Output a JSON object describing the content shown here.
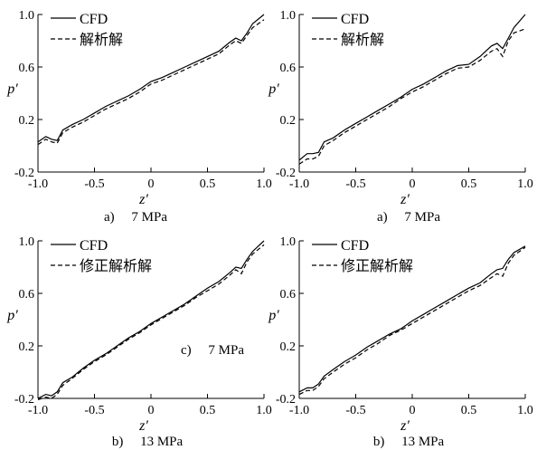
{
  "chart_data": [
    {
      "type": "line",
      "caption": "a)　 7 MPa",
      "xlabel": "z′",
      "ylabel": "p′",
      "xlim": [
        -1.0,
        1.0
      ],
      "ylim": [
        -0.2,
        1.0
      ],
      "xticks": [
        "-1.0",
        "-0.5",
        "0",
        "0.5",
        "1.0"
      ],
      "yticks": [
        "-0.2",
        "0.2",
        "0.6",
        "1.0"
      ],
      "inline_text": [],
      "grid": false,
      "legend_position": "top-left",
      "series": [
        {
          "name": "CFD",
          "style": "solid",
          "x": [
            -1.0,
            -0.93,
            -0.88,
            -0.83,
            -0.78,
            -0.7,
            -0.6,
            -0.5,
            -0.4,
            -0.3,
            -0.2,
            -0.1,
            0.0,
            0.1,
            0.2,
            0.3,
            0.4,
            0.5,
            0.6,
            0.7,
            0.75,
            0.8,
            0.85,
            0.9,
            1.0
          ],
          "y": [
            0.03,
            0.07,
            0.05,
            0.04,
            0.12,
            0.16,
            0.2,
            0.25,
            0.3,
            0.34,
            0.38,
            0.43,
            0.49,
            0.52,
            0.56,
            0.6,
            0.64,
            0.68,
            0.72,
            0.79,
            0.82,
            0.8,
            0.86,
            0.93,
            1.0
          ]
        },
        {
          "name": "解析解",
          "style": "dashed",
          "x": [
            -1.0,
            -0.93,
            -0.88,
            -0.83,
            -0.78,
            -0.7,
            -0.6,
            -0.5,
            -0.4,
            -0.3,
            -0.2,
            -0.1,
            0.0,
            0.1,
            0.2,
            0.3,
            0.4,
            0.5,
            0.6,
            0.7,
            0.75,
            0.8,
            0.85,
            0.9,
            1.0
          ],
          "y": [
            0.01,
            0.05,
            0.03,
            0.02,
            0.1,
            0.14,
            0.18,
            0.23,
            0.28,
            0.32,
            0.36,
            0.41,
            0.47,
            0.5,
            0.54,
            0.58,
            0.62,
            0.66,
            0.7,
            0.77,
            0.8,
            0.78,
            0.84,
            0.9,
            0.96
          ]
        }
      ]
    },
    {
      "type": "line",
      "caption": "a)　 7 MPa",
      "xlabel": "z′",
      "ylabel": "p′",
      "xlim": [
        -1.0,
        1.0
      ],
      "ylim": [
        -0.2,
        1.0
      ],
      "xticks": [
        "-1.0",
        "-0.5",
        "0",
        "0.5",
        "1.0"
      ],
      "yticks": [
        "-0.2",
        "0.2",
        "0.6",
        "1.0"
      ],
      "inline_text": [],
      "grid": false,
      "legend_position": "top-left",
      "series": [
        {
          "name": "CFD",
          "style": "solid",
          "x": [
            -1.0,
            -0.93,
            -0.88,
            -0.83,
            -0.78,
            -0.7,
            -0.6,
            -0.5,
            -0.4,
            -0.3,
            -0.2,
            -0.1,
            0.0,
            0.1,
            0.2,
            0.3,
            0.4,
            0.5,
            0.6,
            0.7,
            0.75,
            0.8,
            0.85,
            0.9,
            1.0
          ],
          "y": [
            -0.11,
            -0.06,
            -0.06,
            -0.05,
            0.03,
            0.06,
            0.12,
            0.17,
            0.22,
            0.27,
            0.32,
            0.37,
            0.43,
            0.47,
            0.52,
            0.57,
            0.61,
            0.62,
            0.68,
            0.76,
            0.78,
            0.74,
            0.82,
            0.9,
            1.0
          ]
        },
        {
          "name": "解析解",
          "style": "dashed",
          "x": [
            -1.0,
            -0.93,
            -0.88,
            -0.83,
            -0.78,
            -0.7,
            -0.6,
            -0.5,
            -0.4,
            -0.3,
            -0.2,
            -0.1,
            0.0,
            0.1,
            0.2,
            0.3,
            0.4,
            0.5,
            0.6,
            0.7,
            0.75,
            0.8,
            0.85,
            0.9,
            1.0
          ],
          "y": [
            -0.14,
            -0.1,
            -0.1,
            -0.08,
            0.0,
            0.04,
            0.1,
            0.15,
            0.2,
            0.25,
            0.3,
            0.36,
            0.41,
            0.45,
            0.5,
            0.55,
            0.59,
            0.6,
            0.65,
            0.72,
            0.74,
            0.68,
            0.8,
            0.86,
            0.89
          ]
        }
      ]
    },
    {
      "type": "line",
      "caption": "b)　 13 MPa",
      "xlabel": "z′",
      "ylabel": "p′",
      "xlim": [
        -1.0,
        1.0
      ],
      "ylim": [
        -0.2,
        1.0
      ],
      "xticks": [
        "-1.0",
        "-0.5",
        "0",
        "0.5",
        "1.0"
      ],
      "yticks": [
        "-0.2",
        "0.2",
        "0.6",
        "1.0"
      ],
      "inline_text": [
        "c)　 7 MPa"
      ],
      "grid": false,
      "legend_position": "top-left",
      "series": [
        {
          "name": "CFD",
          "style": "solid",
          "x": [
            -1.0,
            -0.93,
            -0.88,
            -0.83,
            -0.78,
            -0.7,
            -0.6,
            -0.5,
            -0.4,
            -0.3,
            -0.2,
            -0.1,
            0.0,
            0.1,
            0.2,
            0.3,
            0.4,
            0.5,
            0.6,
            0.7,
            0.75,
            0.8,
            0.85,
            0.9,
            1.0
          ],
          "y": [
            -0.2,
            -0.17,
            -0.18,
            -0.15,
            -0.08,
            -0.04,
            0.03,
            0.09,
            0.14,
            0.2,
            0.26,
            0.31,
            0.37,
            0.42,
            0.47,
            0.52,
            0.58,
            0.64,
            0.69,
            0.76,
            0.8,
            0.79,
            0.86,
            0.92,
            1.0
          ]
        },
        {
          "name": "修正解析解",
          "style": "dashed",
          "x": [
            -1.0,
            -0.93,
            -0.88,
            -0.83,
            -0.78,
            -0.7,
            -0.6,
            -0.5,
            -0.4,
            -0.3,
            -0.2,
            -0.1,
            0.0,
            0.1,
            0.2,
            0.3,
            0.4,
            0.5,
            0.6,
            0.7,
            0.75,
            0.8,
            0.85,
            0.9,
            1.0
          ],
          "y": [
            -0.21,
            -0.19,
            -0.2,
            -0.17,
            -0.1,
            -0.05,
            0.02,
            0.08,
            0.13,
            0.19,
            0.25,
            0.3,
            0.36,
            0.41,
            0.46,
            0.51,
            0.57,
            0.62,
            0.67,
            0.74,
            0.78,
            0.75,
            0.84,
            0.9,
            0.97
          ]
        }
      ]
    },
    {
      "type": "line",
      "caption": "b)　 13 MPa",
      "xlabel": "z′",
      "ylabel": "p′",
      "xlim": [
        -1.0,
        1.0
      ],
      "ylim": [
        -0.2,
        1.0
      ],
      "xticks": [
        "-1.0",
        "-0.5",
        "0",
        "0.5",
        "1.0"
      ],
      "yticks": [
        "-0.2",
        "0.2",
        "0.6",
        "1.0"
      ],
      "inline_text": [],
      "grid": false,
      "legend_position": "top-left",
      "series": [
        {
          "name": "CFD",
          "style": "solid",
          "x": [
            -1.0,
            -0.93,
            -0.88,
            -0.83,
            -0.78,
            -0.7,
            -0.6,
            -0.5,
            -0.4,
            -0.3,
            -0.2,
            -0.1,
            0.0,
            0.1,
            0.2,
            0.3,
            0.4,
            0.5,
            0.6,
            0.7,
            0.75,
            0.8,
            0.85,
            0.9,
            1.0
          ],
          "y": [
            -0.15,
            -0.12,
            -0.12,
            -0.09,
            -0.03,
            0.02,
            0.08,
            0.13,
            0.19,
            0.24,
            0.29,
            0.33,
            0.39,
            0.44,
            0.49,
            0.54,
            0.59,
            0.64,
            0.68,
            0.75,
            0.78,
            0.79,
            0.86,
            0.91,
            0.96
          ]
        },
        {
          "name": "修正解析解",
          "style": "dashed",
          "x": [
            -1.0,
            -0.93,
            -0.88,
            -0.83,
            -0.78,
            -0.7,
            -0.6,
            -0.5,
            -0.4,
            -0.3,
            -0.2,
            -0.1,
            0.0,
            0.1,
            0.2,
            0.3,
            0.4,
            0.5,
            0.6,
            0.7,
            0.75,
            0.8,
            0.85,
            0.9,
            1.0
          ],
          "y": [
            -0.17,
            -0.14,
            -0.14,
            -0.11,
            -0.05,
            0.0,
            0.06,
            0.11,
            0.17,
            0.22,
            0.28,
            0.32,
            0.37,
            0.42,
            0.47,
            0.52,
            0.57,
            0.62,
            0.66,
            0.72,
            0.75,
            0.73,
            0.83,
            0.89,
            0.95
          ]
        }
      ]
    }
  ]
}
